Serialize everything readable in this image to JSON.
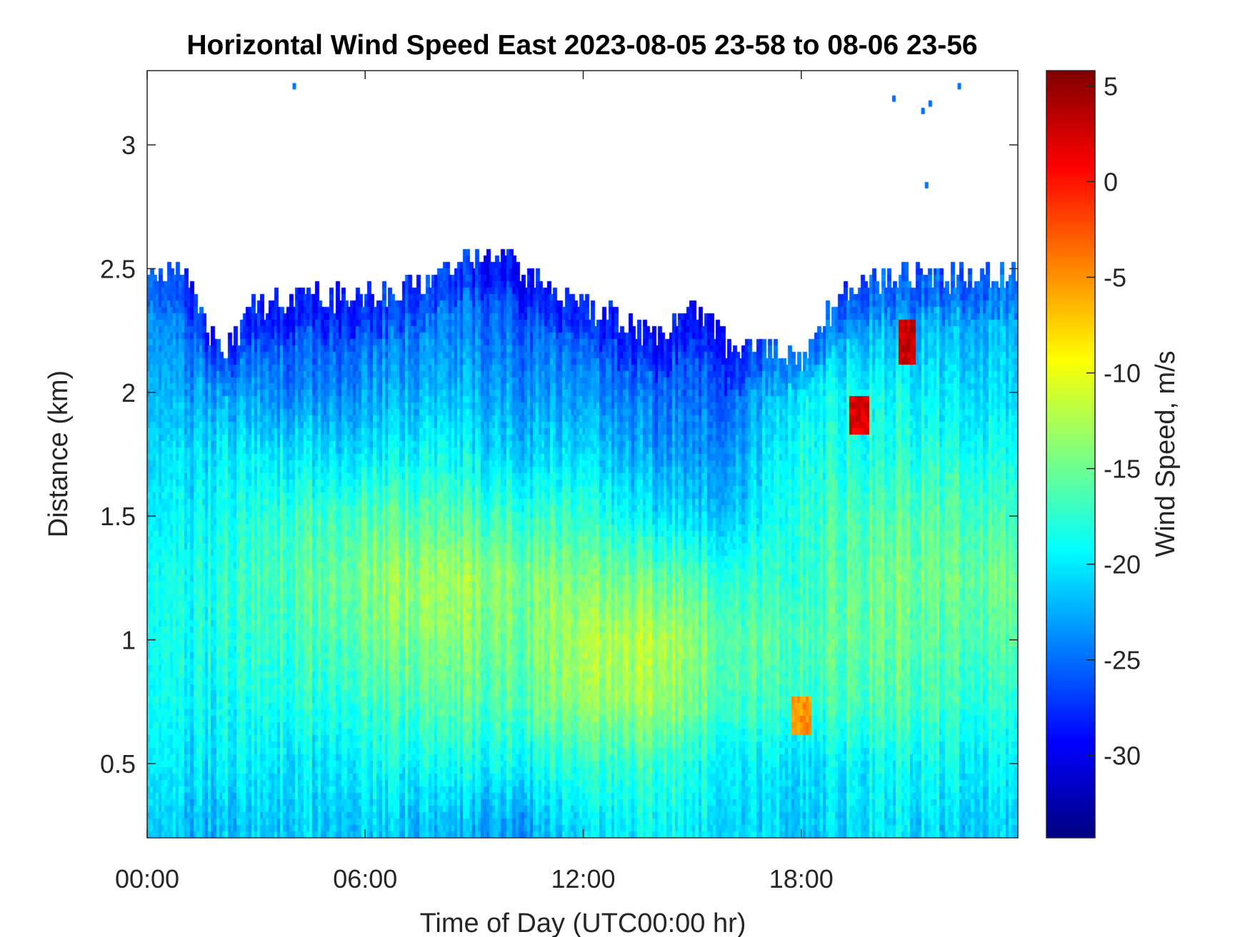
{
  "chart_data": {
    "type": "heatmap",
    "title": "Horizontal Wind Speed East 2023-08-05 23-58 to 08-06 23-56",
    "xlabel": "Time of Day (UTC00:00 hr)",
    "ylabel": "Distance (km)",
    "colorbar_label": "Wind Speed, m/s",
    "colormap": "jet",
    "xlim_hours": [
      0,
      23.96
    ],
    "ylim": [
      0.2,
      3.3
    ],
    "clim": [
      -34.3,
      5.8
    ],
    "x_ticks": [
      {
        "value": 0,
        "label": "00:00"
      },
      {
        "value": 6,
        "label": "06:00"
      },
      {
        "value": 12,
        "label": "12:00"
      },
      {
        "value": 18,
        "label": "18:00"
      }
    ],
    "y_ticks": [
      {
        "value": 0.5,
        "label": "0.5"
      },
      {
        "value": 1,
        "label": "1"
      },
      {
        "value": 1.5,
        "label": "1.5"
      },
      {
        "value": 2,
        "label": "2"
      },
      {
        "value": 2.5,
        "label": "2.5"
      },
      {
        "value": 3,
        "label": "3"
      }
    ],
    "colorbar_ticks": [
      {
        "value": 5,
        "label": "5"
      },
      {
        "value": 0,
        "label": "0"
      },
      {
        "value": -5,
        "label": "-5"
      },
      {
        "value": -10,
        "label": "-10"
      },
      {
        "value": -15,
        "label": "-15"
      },
      {
        "value": -20,
        "label": "-20"
      },
      {
        "value": -25,
        "label": "-25"
      },
      {
        "value": -30,
        "label": "-30"
      }
    ],
    "grid_hours": [
      0,
      2,
      4,
      6,
      8,
      10,
      12,
      14,
      16,
      18,
      20,
      22,
      24
    ],
    "grid_heights_km": [
      0.25,
      0.5,
      0.75,
      1.0,
      1.25,
      1.5,
      1.75,
      2.0,
      2.25,
      2.5
    ],
    "values": [
      [
        -22,
        -22,
        -21,
        -21,
        -22,
        -23,
        -21,
        -19,
        -20,
        -21,
        -20,
        -21,
        -21
      ],
      [
        -21,
        -20,
        -20,
        -19,
        -19,
        -19,
        -18,
        -17,
        -19,
        -20,
        -19,
        -19,
        -20
      ],
      [
        -20,
        -19,
        -18,
        -17,
        -16,
        -16,
        -14,
        -13,
        -16,
        -17,
        -16,
        -17,
        -18
      ],
      [
        -20,
        -18,
        -17,
        -15,
        -14,
        -15,
        -13,
        -12,
        -15,
        -16,
        -15,
        -16,
        -16
      ],
      [
        -20,
        -18,
        -16,
        -14,
        -13,
        -14,
        -15,
        -15,
        -17,
        -17,
        -15,
        -15,
        -15
      ],
      [
        -21,
        -19,
        -17,
        -16,
        -16,
        -17,
        -18,
        -20,
        -21,
        -17,
        -16,
        -16,
        -17
      ],
      [
        -22,
        -20,
        -20,
        -20,
        -19,
        -21,
        -21,
        -23,
        -23,
        -18,
        -18,
        -18,
        -19
      ],
      [
        -23,
        -23,
        -24,
        -23,
        -22,
        -23,
        -24,
        -25,
        -25,
        -19,
        -19,
        -20,
        -21
      ],
      [
        -24,
        -26,
        -26,
        -25,
        -24,
        -25,
        -26,
        -27,
        -26,
        -23,
        -22,
        -22,
        -22
      ],
      [
        -24,
        -26,
        -27,
        -26,
        -25,
        -27,
        -27,
        -27,
        -27,
        -25,
        -24,
        -24,
        -23
      ]
    ],
    "data_top_km_hourly": [
      2.49,
      2.48,
      2.15,
      2.35,
      2.38,
      2.38,
      2.4,
      2.41,
      2.45,
      2.54,
      2.53,
      2.43,
      2.35,
      2.3,
      2.22,
      2.35,
      2.19,
      2.19,
      2.15,
      2.38,
      2.45,
      2.48,
      2.46,
      2.48,
      2.47
    ],
    "anomalies": [
      {
        "hour": 18.0,
        "height_km": 0.7,
        "value": -5
      },
      {
        "hour": 19.6,
        "height_km": 1.9,
        "value": 2
      },
      {
        "hour": 20.9,
        "height_km": 2.2,
        "value": 3
      }
    ]
  }
}
